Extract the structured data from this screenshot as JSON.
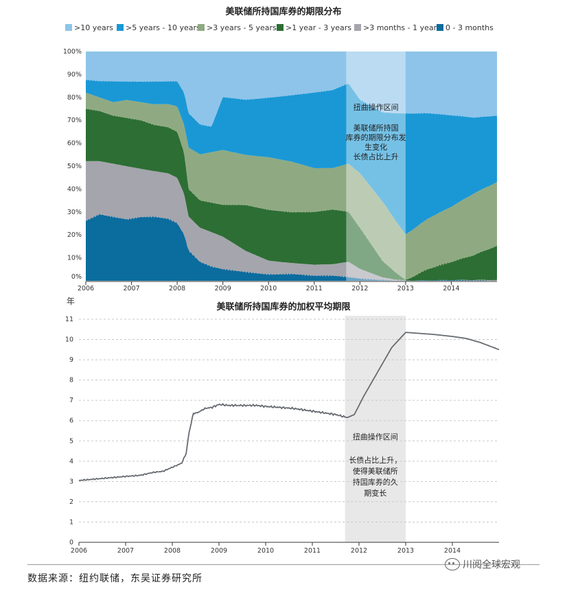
{
  "chart_data": [
    {
      "type": "area",
      "title": "美联储所持国库券的期限分布",
      "x_ticks": [
        "2006",
        "2007",
        "2008",
        "2009",
        "2010",
        "2011",
        "2012",
        "2013",
        "2014"
      ],
      "y_ticks": [
        "0%",
        "10%",
        "20%",
        "30%",
        "40%",
        "50%",
        "60%",
        "70%",
        "80%",
        "90%",
        "100%"
      ],
      "xlim": [
        2006,
        2015
      ],
      "ylim": [
        0,
        100
      ],
      "stacked": true,
      "legend_position": "top",
      "colors": [
        "#8ec4e9",
        "#1a98d5",
        "#8faa82",
        "#2d6e34",
        "#a5a5ad",
        "#0b6c9e"
      ],
      "series": [
        {
          "name": "0 - 3 months",
          "x": [
            2006.0,
            2006.3,
            2006.6,
            2006.9,
            2007.2,
            2007.5,
            2007.8,
            2008.0,
            2008.15,
            2008.25,
            2008.5,
            2008.75,
            2009.0,
            2009.5,
            2010.0,
            2010.5,
            2011.0,
            2011.4,
            2011.75,
            2012.0,
            2012.5,
            2013.0,
            2013.5,
            2014.0,
            2014.5,
            2015.0
          ],
          "values": [
            26,
            29,
            28,
            27,
            28,
            28,
            27,
            25,
            20,
            13,
            8,
            6,
            5,
            4,
            3,
            3,
            2,
            2,
            1.5,
            1,
            0.5,
            0,
            0,
            0,
            0,
            0
          ]
        },
        {
          "name": ">3 months - 1 year",
          "x": [
            2006.0,
            2006.3,
            2006.6,
            2006.9,
            2007.2,
            2007.5,
            2007.8,
            2008.0,
            2008.15,
            2008.25,
            2008.5,
            2008.75,
            2009.0,
            2009.5,
            2010.0,
            2010.5,
            2011.0,
            2011.4,
            2011.75,
            2012.0,
            2012.5,
            2013.0,
            2013.5,
            2014.0,
            2014.5,
            2015.0
          ],
          "values": [
            26,
            23,
            23,
            23,
            21,
            20,
            20,
            20,
            18,
            15,
            15,
            15,
            14,
            9,
            6,
            5,
            5,
            5,
            6.5,
            4,
            1,
            0,
            0,
            0,
            0,
            0
          ]
        },
        {
          "name": ">1 year - 3 years",
          "x": [
            2006.0,
            2006.3,
            2006.6,
            2006.9,
            2007.2,
            2007.5,
            2007.8,
            2008.0,
            2008.15,
            2008.25,
            2008.5,
            2008.75,
            2009.0,
            2009.5,
            2010.0,
            2010.5,
            2011.0,
            2011.4,
            2011.75,
            2012.0,
            2012.5,
            2013.0,
            2013.5,
            2014.0,
            2014.5,
            2015.0
          ],
          "values": [
            23,
            22,
            21,
            21,
            21,
            20,
            20,
            20,
            18,
            12,
            12,
            13,
            14,
            20,
            22,
            22,
            23,
            24,
            22,
            18,
            7,
            0,
            5,
            8,
            11,
            15
          ]
        },
        {
          "name": ">3 years - 5 years",
          "x": [
            2006.0,
            2006.3,
            2006.6,
            2006.9,
            2007.2,
            2007.5,
            2007.8,
            2008.0,
            2008.15,
            2008.25,
            2008.5,
            2008.75,
            2009.0,
            2009.5,
            2010.0,
            2010.5,
            2011.0,
            2011.4,
            2011.75,
            2012.0,
            2012.5,
            2013.0,
            2013.5,
            2014.0,
            2014.5,
            2015.0
          ],
          "values": [
            7,
            6,
            6,
            8,
            8,
            9,
            10,
            11,
            12,
            18,
            20,
            22,
            24,
            22,
            23,
            22,
            19,
            18,
            21,
            24,
            26,
            20,
            22,
            24,
            27,
            28
          ]
        },
        {
          "name": ">5 years - 10 years",
          "x": [
            2006.0,
            2006.3,
            2006.6,
            2006.9,
            2007.2,
            2007.5,
            2007.8,
            2008.0,
            2008.15,
            2008.25,
            2008.5,
            2008.75,
            2009.0,
            2009.5,
            2010.0,
            2010.5,
            2011.0,
            2011.4,
            2011.75,
            2012.0,
            2012.5,
            2013.0,
            2013.5,
            2014.0,
            2014.5,
            2015.0
          ],
          "values": [
            5.5,
            7,
            9,
            8,
            9,
            10,
            10,
            11,
            14,
            15,
            13,
            11,
            23,
            24,
            26,
            29,
            33,
            34,
            35,
            32,
            39,
            53,
            46,
            40,
            33,
            29
          ]
        },
        {
          "name": ">10 years",
          "x": [
            2006.0,
            2006.3,
            2006.6,
            2006.9,
            2007.2,
            2007.5,
            2007.8,
            2008.0,
            2008.15,
            2008.25,
            2008.5,
            2008.75,
            2009.0,
            2009.5,
            2010.0,
            2010.5,
            2011.0,
            2011.4,
            2011.75,
            2012.0,
            2012.5,
            2013.0,
            2013.5,
            2014.0,
            2014.5,
            2015.0
          ],
          "values": [
            12.5,
            13,
            13,
            13,
            13,
            13,
            13,
            13,
            18,
            27,
            32,
            33,
            20,
            21,
            20,
            19,
            18,
            17,
            14,
            21,
            26.5,
            27,
            27,
            28,
            29,
            28
          ]
        }
      ],
      "shaded_region": {
        "x": [
          2011.7,
          2013.0
        ],
        "labels": [
          "扭曲操作区间",
          "美联储所持国库券的期限分布发",
          "生变化",
          "长债占比上升"
        ]
      }
    },
    {
      "type": "line",
      "title": "美联储所持国库券的加权平均期限",
      "ylabel": "年",
      "x_ticks": [
        "2006",
        "2007",
        "2008",
        "2009",
        "2010",
        "2011",
        "2012",
        "2013",
        "2014"
      ],
      "y_ticks": [
        "0",
        "1",
        "2",
        "3",
        "4",
        "5",
        "6",
        "7",
        "8",
        "9",
        "10",
        "11"
      ],
      "xlim": [
        2006,
        2015
      ],
      "ylim": [
        0,
        11
      ],
      "line_color": "#666a70",
      "x": [
        2006.0,
        2006.5,
        2007.0,
        2007.3,
        2007.6,
        2007.8,
        2008.0,
        2008.2,
        2008.3,
        2008.35,
        2008.45,
        2008.55,
        2008.7,
        2008.85,
        2009.0,
        2009.2,
        2009.5,
        2009.8,
        2010.0,
        2010.3,
        2010.6,
        2010.9,
        2011.2,
        2011.5,
        2011.75,
        2011.9,
        2012.1,
        2012.4,
        2012.7,
        2013.0,
        2013.3,
        2013.6,
        2014.0,
        2014.3,
        2014.6,
        2015.0
      ],
      "values": [
        3.05,
        3.15,
        3.25,
        3.3,
        3.45,
        3.5,
        3.7,
        3.9,
        4.4,
        5.3,
        6.35,
        6.4,
        6.6,
        6.65,
        6.8,
        6.75,
        6.75,
        6.75,
        6.7,
        6.65,
        6.6,
        6.5,
        6.4,
        6.3,
        6.15,
        6.3,
        7.2,
        8.4,
        9.6,
        10.35,
        10.3,
        10.25,
        10.15,
        10.05,
        9.85,
        9.5
      ],
      "shaded_region": {
        "x": [
          2011.7,
          2013.0
        ],
        "labels": [
          "扭曲操作区间",
          "长债占比上升，",
          "使得美联储所",
          "持国库券的久",
          "期变长"
        ]
      }
    }
  ],
  "footer": {
    "source": "数据来源：纽约联储，东吴证券研究所",
    "watermark": "川阅全球宏观"
  }
}
